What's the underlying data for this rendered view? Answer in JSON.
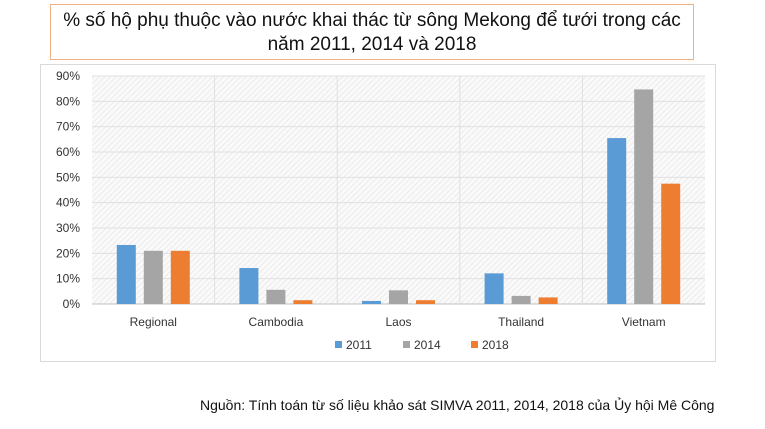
{
  "title": {
    "line1": "% số hộ phụ thuộc vào nước khai thác từ sông Mekong để tưới trong các",
    "line2": "năm 2011, 2014 và 2018"
  },
  "source": "Nguồn: Tính toán từ số liệu khảo sát SIMVA 2011, 2014, 2018 của Ủy hội Mê Công",
  "chart_data": {
    "type": "bar",
    "title": "% số hộ phụ thuộc vào nước khai thác từ sông Mekong để tưới trong các năm 2011, 2014 và 2018",
    "categories": [
      "Regional",
      "Cambodia",
      "Laos",
      "Thailand",
      "Vietnam"
    ],
    "series": [
      {
        "name": "2011",
        "color": "#5b9bd5",
        "values": [
          23.3,
          14.2,
          1.2,
          12.1,
          65.5
        ]
      },
      {
        "name": "2014",
        "color": "#a5a5a5",
        "values": [
          21.0,
          5.6,
          5.4,
          3.2,
          84.7
        ]
      },
      {
        "name": "2018",
        "color": "#ed7d31",
        "values": [
          21.0,
          1.5,
          1.5,
          2.6,
          47.5
        ]
      }
    ],
    "yticks": [
      "0%",
      "10%",
      "20%",
      "30%",
      "40%",
      "50%",
      "60%",
      "70%",
      "80%",
      "90%"
    ],
    "ylim": [
      0,
      90
    ],
    "xlabel": "",
    "ylabel": "",
    "legend": "bottom",
    "grid": true
  }
}
